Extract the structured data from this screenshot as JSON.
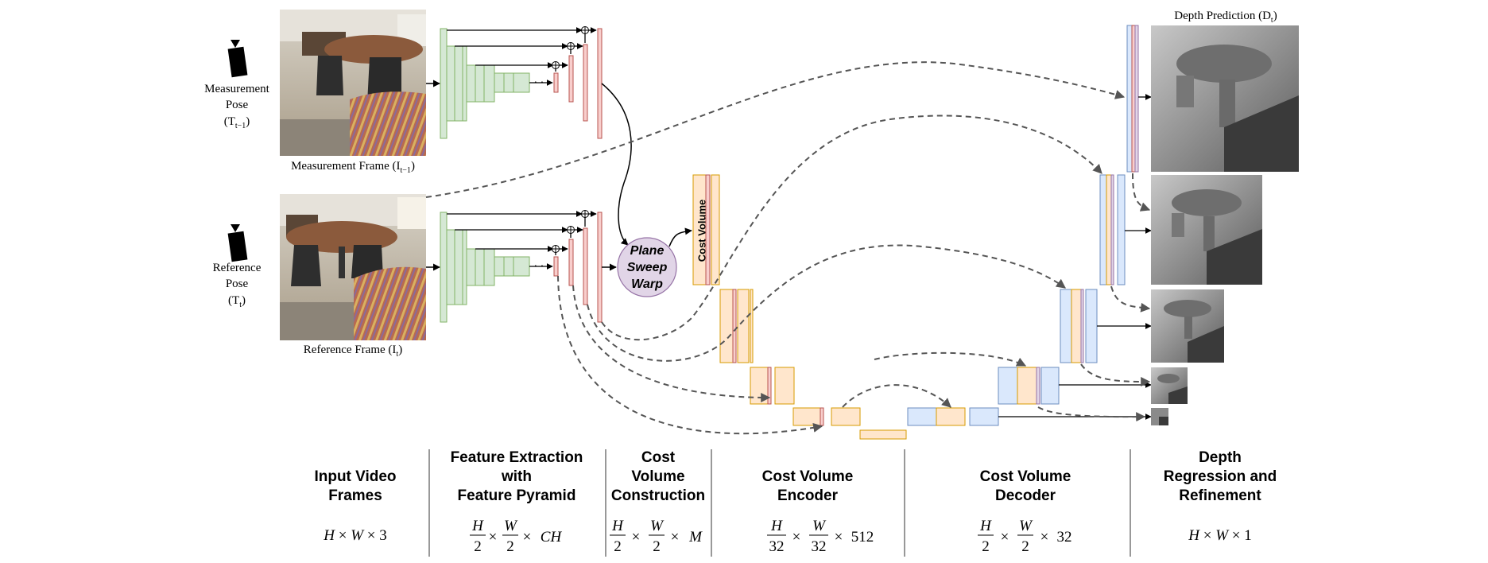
{
  "inputs": {
    "measurement_pose": [
      "Measurement",
      "Pose"
    ],
    "measurement_pose_symbol": "(T",
    "measurement_pose_sub": "t−1",
    "reference_pose": [
      "Reference",
      "Pose"
    ],
    "reference_pose_symbol": "(T",
    "reference_pose_sub": "t",
    "measurement_frame_caption": "Measurement Frame (I",
    "measurement_frame_sub": "t−1",
    "reference_frame_caption": "Reference Frame (I",
    "reference_frame_sub": "t",
    "close_paren": ")"
  },
  "blocks": {
    "plane_sweep": [
      "Plane",
      "Sweep",
      "Warp"
    ],
    "cost_volume": "Cost Volume",
    "depth_prediction": "Depth Prediction (D",
    "depth_prediction_sub": "t",
    "ellipsis": "· · ·"
  },
  "stages": [
    {
      "title": [
        "Input Video",
        "Frames"
      ],
      "dim": "H × W × 3"
    },
    {
      "title": [
        "Feature Extraction",
        "with",
        "Feature Pyramid"
      ],
      "dim": "H/2 × W/2 × CH"
    },
    {
      "title": [
        "Cost",
        "Volume",
        "Construction"
      ],
      "dim": "H/2 × W/2 × M"
    },
    {
      "title": [
        "Cost Volume",
        "Encoder"
      ],
      "dim": "H/32 × W/32 × 512"
    },
    {
      "title": [
        "Cost Volume",
        "Decoder"
      ],
      "dim": "H/2 × W/2 × 32"
    },
    {
      "title": [
        "Depth",
        "Regression and",
        "Refinement"
      ],
      "dim": "H × W × 1"
    }
  ],
  "dims": {
    "H": "H",
    "W": "W",
    "times": "×",
    "two": "2",
    "thirtytwo": "32",
    "three": "3",
    "CH": "CH",
    "M": "M",
    "n512": "512",
    "n32": "32",
    "one": "1"
  },
  "colors": {
    "green": "#d5e8d4",
    "green_stroke": "#82b366",
    "red": "#f8cecc",
    "red_stroke": "#b85450",
    "orange": "#ffe6cc",
    "orange_stroke": "#d79b00",
    "blue": "#dae8fc",
    "blue_stroke": "#6c8ebf",
    "purple": "#e1d5e7",
    "purple_stroke": "#9673a6"
  }
}
